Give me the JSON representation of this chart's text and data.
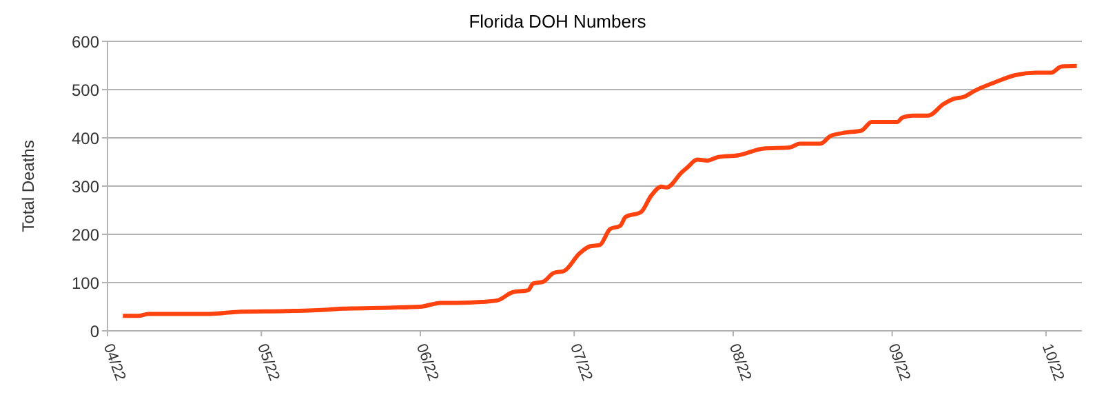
{
  "chart_data": {
    "type": "line",
    "title": "Florida DOH Numbers",
    "ylabel": "Total Deaths",
    "x": [
      "--04-25",
      "--04-28",
      "--04-30",
      "--05-12",
      "--05-17",
      "--05-27",
      "--06-04",
      "--06-07",
      "--06-16",
      "--06-22",
      "--06-26",
      "--06-29",
      "--07-04",
      "--07-07",
      "--07-10",
      "--07-13",
      "--07-14",
      "--07-16",
      "--07-18",
      "--07-20",
      "--07-23",
      "--07-25",
      "--07-27",
      "--07-29",
      "--07-31",
      "--08-01",
      "--08-04",
      "--08-06",
      "--08-08",
      "--08-09",
      "--08-12",
      "--08-13",
      "--08-15",
      "--08-17",
      "--08-19",
      "--08-23",
      "--08-28",
      "--09-02",
      "--09-04",
      "--09-08",
      "--09-10",
      "--09-13",
      "--09-16",
      "--09-18",
      "--09-23",
      "--09-24",
      "--09-26",
      "--09-29",
      "--10-02",
      "--10-04",
      "--10-06",
      "--10-08",
      "--10-12",
      "--10-16",
      "--10-20",
      "--10-23",
      "--10-25",
      "--10-28"
    ],
    "series": [
      {
        "color": "#ff420e",
        "values": [
          31,
          31,
          35,
          35,
          39,
          41,
          44,
          46,
          48,
          50,
          58,
          58,
          60,
          63,
          80,
          84,
          98,
          102,
          120,
          124,
          160,
          175,
          178,
          211,
          218,
          236,
          246,
          280,
          299,
          297,
          329,
          338,
          355,
          353,
          360,
          364,
          378,
          380,
          388,
          388,
          404,
          411,
          415,
          433,
          433,
          442,
          446,
          446,
          470,
          481,
          485,
          497,
          515,
          530,
          535,
          535,
          548,
          549
        ]
      }
    ],
    "xlim": [
      "--04-22",
      "--10-29"
    ],
    "xticks": [
      {
        "value": "--04-22",
        "label": "04/22"
      },
      {
        "value": "--05-22",
        "label": "05/22"
      },
      {
        "value": "--06-22",
        "label": "06/22"
      },
      {
        "value": "--07-22",
        "label": "07/22"
      },
      {
        "value": "--08-22",
        "label": "08/22"
      },
      {
        "value": "--09-22",
        "label": "09/22"
      },
      {
        "value": "--10-22",
        "label": "10/22"
      }
    ],
    "ylim": [
      0,
      600
    ],
    "yticks": [
      0,
      100,
      200,
      300,
      400,
      500,
      600
    ],
    "grid": "y",
    "legend": false,
    "marker": "none",
    "line_style": "solid"
  }
}
